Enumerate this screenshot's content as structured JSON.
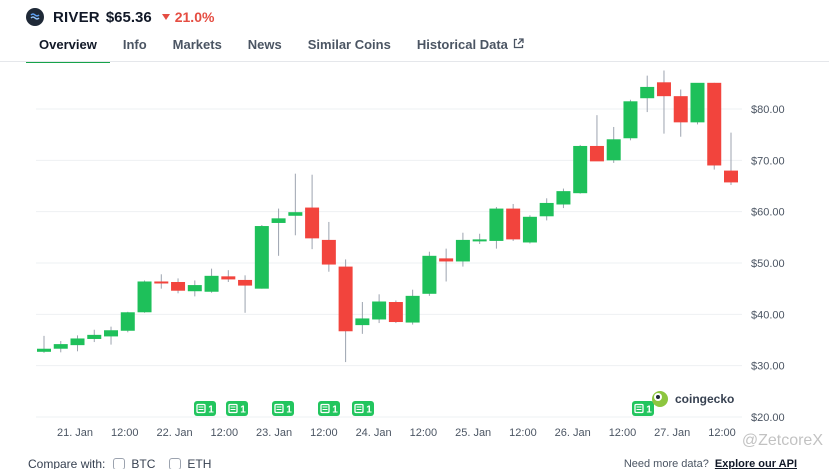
{
  "coin": {
    "symbol": "RIVER",
    "price": "$65.36",
    "change": "21.0%",
    "logo_icon": "river-logo"
  },
  "tabs": [
    {
      "label": "Overview",
      "active": true
    },
    {
      "label": "Info"
    },
    {
      "label": "Markets"
    },
    {
      "label": "News"
    },
    {
      "label": "Similar Coins"
    },
    {
      "label": "Historical Data",
      "icon": "external-link-icon"
    }
  ],
  "colors": {
    "up": "#1ec05a",
    "down": "#f2443d",
    "active_tab": "#16a34a",
    "grid": "#eef0f3"
  },
  "chart_data": {
    "type": "candlestick",
    "y_tick_labels": [
      "$20.00",
      "$30.00",
      "$40.00",
      "$50.00",
      "$60.00",
      "$70.00",
      "$80.00"
    ],
    "y_ticks": [
      20,
      30,
      40,
      50,
      60,
      70,
      80
    ],
    "ylim": [
      18,
      88
    ],
    "x_tick_labels": [
      "21. Jan",
      "12:00",
      "22. Jan",
      "12:00",
      "23. Jan",
      "12:00",
      "24. Jan",
      "12:00",
      "25. Jan",
      "12:00",
      "26. Jan",
      "12:00",
      "27. Jan",
      "12:00"
    ],
    "grid": true,
    "candles": [
      {
        "o": 32.7,
        "h": 35.8,
        "l": 32.5,
        "c": 33.3
      },
      {
        "o": 33.3,
        "h": 34.8,
        "l": 32.6,
        "c": 34.2
      },
      {
        "o": 34.0,
        "h": 35.9,
        "l": 32.8,
        "c": 35.3
      },
      {
        "o": 35.2,
        "h": 37.0,
        "l": 34.6,
        "c": 36.0
      },
      {
        "o": 35.7,
        "h": 37.6,
        "l": 34.1,
        "c": 36.9
      },
      {
        "o": 36.8,
        "h": 40.5,
        "l": 36.5,
        "c": 40.4
      },
      {
        "o": 40.4,
        "h": 46.6,
        "l": 40.3,
        "c": 46.4
      },
      {
        "o": 46.4,
        "h": 47.8,
        "l": 45.0,
        "c": 46.2
      },
      {
        "o": 46.3,
        "h": 47.0,
        "l": 44.1,
        "c": 44.6
      },
      {
        "o": 44.5,
        "h": 46.6,
        "l": 43.5,
        "c": 45.7
      },
      {
        "o": 44.4,
        "h": 48.9,
        "l": 44.2,
        "c": 47.5
      },
      {
        "o": 47.4,
        "h": 48.6,
        "l": 46.3,
        "c": 46.8
      },
      {
        "o": 46.7,
        "h": 47.6,
        "l": 40.3,
        "c": 45.6
      },
      {
        "o": 45.0,
        "h": 57.4,
        "l": 45.0,
        "c": 57.2
      },
      {
        "o": 57.8,
        "h": 60.6,
        "l": 51.4,
        "c": 58.7
      },
      {
        "o": 59.2,
        "h": 67.4,
        "l": 55.4,
        "c": 59.9
      },
      {
        "o": 60.8,
        "h": 67.2,
        "l": 52.7,
        "c": 54.8
      },
      {
        "o": 54.5,
        "h": 58.0,
        "l": 48.3,
        "c": 49.7
      },
      {
        "o": 49.3,
        "h": 50.7,
        "l": 30.7,
        "c": 36.7
      },
      {
        "o": 37.9,
        "h": 42.4,
        "l": 36.2,
        "c": 39.2
      },
      {
        "o": 39.0,
        "h": 43.9,
        "l": 38.3,
        "c": 42.5
      },
      {
        "o": 42.4,
        "h": 42.7,
        "l": 38.3,
        "c": 38.5
      },
      {
        "o": 38.4,
        "h": 44.8,
        "l": 38.0,
        "c": 43.6
      },
      {
        "o": 44.0,
        "h": 52.2,
        "l": 43.6,
        "c": 51.4
      },
      {
        "o": 50.9,
        "h": 52.8,
        "l": 46.4,
        "c": 50.3
      },
      {
        "o": 50.3,
        "h": 55.9,
        "l": 49.3,
        "c": 54.5
      },
      {
        "o": 54.3,
        "h": 55.7,
        "l": 53.7,
        "c": 54.6
      },
      {
        "o": 54.3,
        "h": 60.9,
        "l": 52.8,
        "c": 60.6
      },
      {
        "o": 60.6,
        "h": 61.5,
        "l": 54.3,
        "c": 54.6
      },
      {
        "o": 54.0,
        "h": 59.3,
        "l": 53.8,
        "c": 59.0
      },
      {
        "o": 59.1,
        "h": 62.6,
        "l": 58.3,
        "c": 61.7
      },
      {
        "o": 61.4,
        "h": 64.5,
        "l": 60.7,
        "c": 64.0
      },
      {
        "o": 63.6,
        "h": 73.0,
        "l": 63.5,
        "c": 72.8
      },
      {
        "o": 72.8,
        "h": 78.8,
        "l": 70.3,
        "c": 69.8
      },
      {
        "o": 70.0,
        "h": 76.5,
        "l": 69.5,
        "c": 74.1
      },
      {
        "o": 74.3,
        "h": 81.8,
        "l": 73.9,
        "c": 81.5
      },
      {
        "o": 82.1,
        "h": 86.5,
        "l": 79.4,
        "c": 84.3
      },
      {
        "o": 85.2,
        "h": 87.5,
        "l": 75.2,
        "c": 82.5
      },
      {
        "o": 82.5,
        "h": 83.8,
        "l": 74.6,
        "c": 77.4
      },
      {
        "o": 77.4,
        "h": 85.0,
        "l": 77.0,
        "c": 85.1
      },
      {
        "o": 85.1,
        "h": 85.1,
        "l": 68.2,
        "c": 69.0
      },
      {
        "o": 68.0,
        "h": 75.4,
        "l": 65.2,
        "c": 65.7
      }
    ],
    "news_markers": [
      {
        "label": "1",
        "icon": "news-icon"
      },
      {
        "label": "1",
        "icon": "news-icon"
      },
      {
        "label": "1",
        "icon": "news-icon"
      },
      {
        "label": "1",
        "icon": "news-icon"
      },
      {
        "label": "1",
        "icon": "news-icon"
      },
      {
        "label": "1",
        "icon": "news-icon"
      }
    ],
    "branding": "coingecko"
  },
  "compare": {
    "label": "Compare with:",
    "options": [
      "BTC",
      "ETH"
    ]
  },
  "footer": {
    "need_more": "Need more data?",
    "explore": "Explore our API"
  },
  "watermark": "@ZetcoreX"
}
